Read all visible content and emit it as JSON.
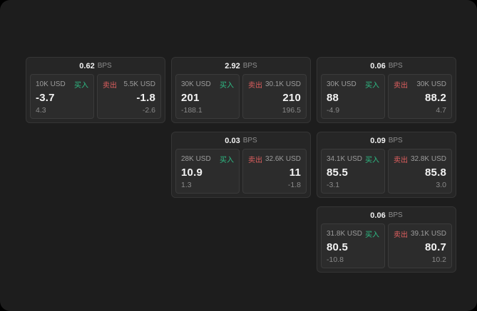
{
  "unit": "BPS",
  "labels": {
    "buy": "买入",
    "sell": "卖出"
  },
  "colors": {
    "buy": "#2ebd85",
    "sell": "#e05f5f",
    "background": "#1d1d1d",
    "card": "#262626",
    "panel": "#2c2c2c"
  },
  "cards": [
    {
      "spread": "0.62",
      "buy": {
        "amount": "10K USD",
        "price": "-3.7",
        "sub": "4.3"
      },
      "sell": {
        "amount": "5.5K USD",
        "price": "-1.8",
        "sub": "-2.6"
      }
    },
    {
      "spread": "2.92",
      "buy": {
        "amount": "30K USD",
        "price": "201",
        "sub": "-188.1"
      },
      "sell": {
        "amount": "30.1K USD",
        "price": "210",
        "sub": "196.5"
      }
    },
    {
      "spread": "0.06",
      "buy": {
        "amount": "30K USD",
        "price": "88",
        "sub": "-4.9"
      },
      "sell": {
        "amount": "30K USD",
        "price": "88.2",
        "sub": "4.7"
      }
    },
    {
      "spread": "0.03",
      "buy": {
        "amount": "28K USD",
        "price": "10.9",
        "sub": "1.3"
      },
      "sell": {
        "amount": "32.6K USD",
        "price": "11",
        "sub": "-1.8"
      }
    },
    {
      "spread": "0.09",
      "buy": {
        "amount": "34.1K USD",
        "price": "85.5",
        "sub": "-3.1"
      },
      "sell": {
        "amount": "32.8K USD",
        "price": "85.8",
        "sub": "3.0"
      }
    },
    {
      "spread": "0.06",
      "buy": {
        "amount": "31.8K USD",
        "price": "80.5",
        "sub": "-10.8"
      },
      "sell": {
        "amount": "39.1K USD",
        "price": "80.7",
        "sub": "10.2"
      }
    }
  ]
}
